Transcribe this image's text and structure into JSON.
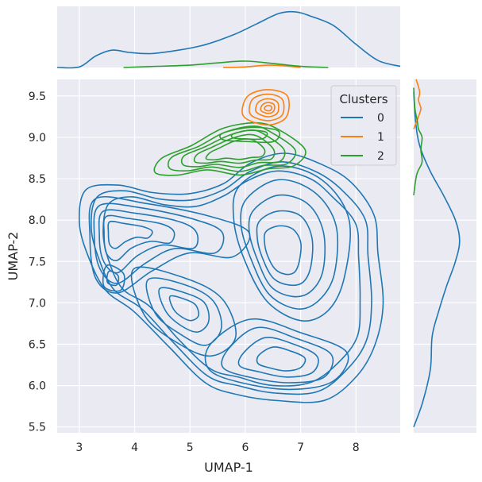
{
  "chart_data": {
    "type": "kde-jointplot",
    "xlabel": "UMAP-1",
    "ylabel": "UMAP-2",
    "xlim": [
      2.6,
      8.8
    ],
    "ylim": [
      5.43,
      9.7
    ],
    "xticks": [
      "3",
      "4",
      "5",
      "6",
      "7",
      "8"
    ],
    "yticks": [
      "5.5",
      "6.0",
      "6.5",
      "7.0",
      "7.5",
      "8.0",
      "8.5",
      "9.0",
      "9.5"
    ],
    "grid": true,
    "legend": {
      "title": "Clusters",
      "placement": "top-right",
      "entries": [
        "0",
        "1",
        "2"
      ]
    },
    "colors": {
      "0": "#1f77b4",
      "1": "#ff7f0e",
      "2": "#2ca02c",
      "panel_bg": "#eaeaf2",
      "grid": "#ffffff"
    },
    "series": [
      {
        "name": "0",
        "density_centers": [
          {
            "x": 3.65,
            "y": 7.87
          },
          {
            "x": 3.55,
            "y": 7.3
          },
          {
            "x": 4.7,
            "y": 7.05
          },
          {
            "x": 6.55,
            "y": 7.6
          },
          {
            "x": 6.7,
            "y": 6.3
          },
          {
            "x": 6.6,
            "y": 6.8
          }
        ],
        "marginal_x": [
          [
            2.6,
            0
          ],
          [
            3.0,
            0.01
          ],
          [
            3.3,
            0.2
          ],
          [
            3.6,
            0.3
          ],
          [
            3.9,
            0.26
          ],
          [
            4.3,
            0.24
          ],
          [
            4.8,
            0.3
          ],
          [
            5.3,
            0.4
          ],
          [
            5.8,
            0.57
          ],
          [
            6.2,
            0.75
          ],
          [
            6.6,
            0.93
          ],
          [
            6.9,
            0.96
          ],
          [
            7.2,
            0.88
          ],
          [
            7.6,
            0.72
          ],
          [
            8.0,
            0.4
          ],
          [
            8.4,
            0.12
          ],
          [
            8.8,
            0.02
          ]
        ],
        "marginal_y": [
          [
            5.5,
            0
          ],
          [
            5.8,
            0.15
          ],
          [
            6.2,
            0.28
          ],
          [
            6.6,
            0.31
          ],
          [
            6.9,
            0.42
          ],
          [
            7.2,
            0.55
          ],
          [
            7.5,
            0.7
          ],
          [
            7.75,
            0.77
          ],
          [
            8.0,
            0.7
          ],
          [
            8.3,
            0.5
          ],
          [
            8.6,
            0.27
          ],
          [
            8.9,
            0.1
          ],
          [
            9.2,
            0.03
          ],
          [
            9.55,
            0
          ]
        ]
      },
      {
        "name": "1",
        "density_centers": [
          {
            "x": 6.4,
            "y": 9.35
          }
        ],
        "marginal_x": [
          [
            5.6,
            0
          ],
          [
            6.0,
            0.01
          ],
          [
            6.4,
            0.04
          ],
          [
            6.7,
            0.03
          ],
          [
            7.0,
            0
          ]
        ],
        "marginal_y": [
          [
            9.1,
            0
          ],
          [
            9.25,
            0.08
          ],
          [
            9.35,
            0.12
          ],
          [
            9.45,
            0.08
          ],
          [
            9.55,
            0.1
          ],
          [
            9.7,
            0.04
          ]
        ]
      },
      {
        "name": "2",
        "density_centers": [
          {
            "x": 6.05,
            "y": 9.05
          },
          {
            "x": 4.9,
            "y": 8.75
          }
        ],
        "marginal_x": [
          [
            3.8,
            0
          ],
          [
            4.4,
            0.02
          ],
          [
            5.0,
            0.04
          ],
          [
            5.5,
            0.08
          ],
          [
            6.0,
            0.11
          ],
          [
            6.5,
            0.07
          ],
          [
            7.0,
            0.02
          ],
          [
            7.5,
            0
          ]
        ],
        "marginal_y": [
          [
            8.3,
            0
          ],
          [
            8.55,
            0.05
          ],
          [
            8.7,
            0.14
          ],
          [
            8.85,
            0.12
          ],
          [
            9.0,
            0.14
          ],
          [
            9.1,
            0.08
          ],
          [
            9.2,
            0.06
          ],
          [
            9.35,
            0.02
          ],
          [
            9.6,
            0
          ]
        ]
      }
    ]
  }
}
